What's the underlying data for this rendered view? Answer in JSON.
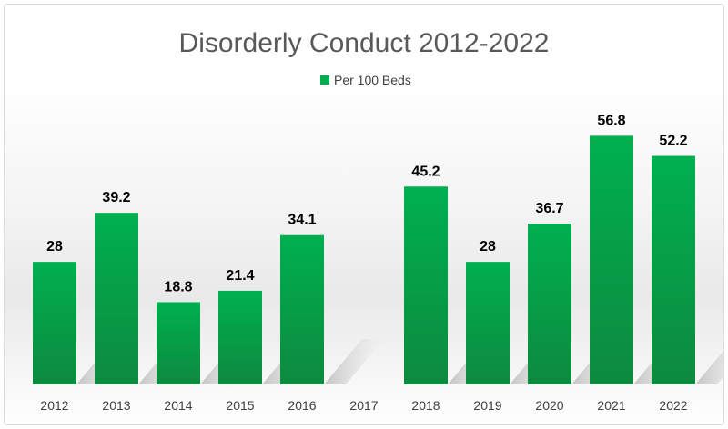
{
  "chart_data": {
    "type": "bar",
    "title": "Disorderly Conduct 2012-2022",
    "xlabel": "",
    "ylabel": "",
    "legend": {
      "placement": "top-center",
      "entries": [
        "Per 100 Beds"
      ]
    },
    "grid": false,
    "categories": [
      "2012",
      "2013",
      "2014",
      "2015",
      "2016",
      "2017",
      "2018",
      "2019",
      "2020",
      "2021",
      "2022"
    ],
    "series": [
      {
        "name": "Per 100 Beds",
        "color": "#00b050",
        "values": [
          28,
          39.2,
          18.8,
          21.4,
          34.1,
          null,
          45.2,
          28,
          36.7,
          56.8,
          52.2
        ],
        "labels": [
          "28",
          "39.2",
          "18.8",
          "21.4",
          "34.1",
          "",
          "45.2",
          "28",
          "36.7",
          "56.8",
          "52.2"
        ]
      }
    ],
    "ylim": [
      0,
      60
    ]
  }
}
